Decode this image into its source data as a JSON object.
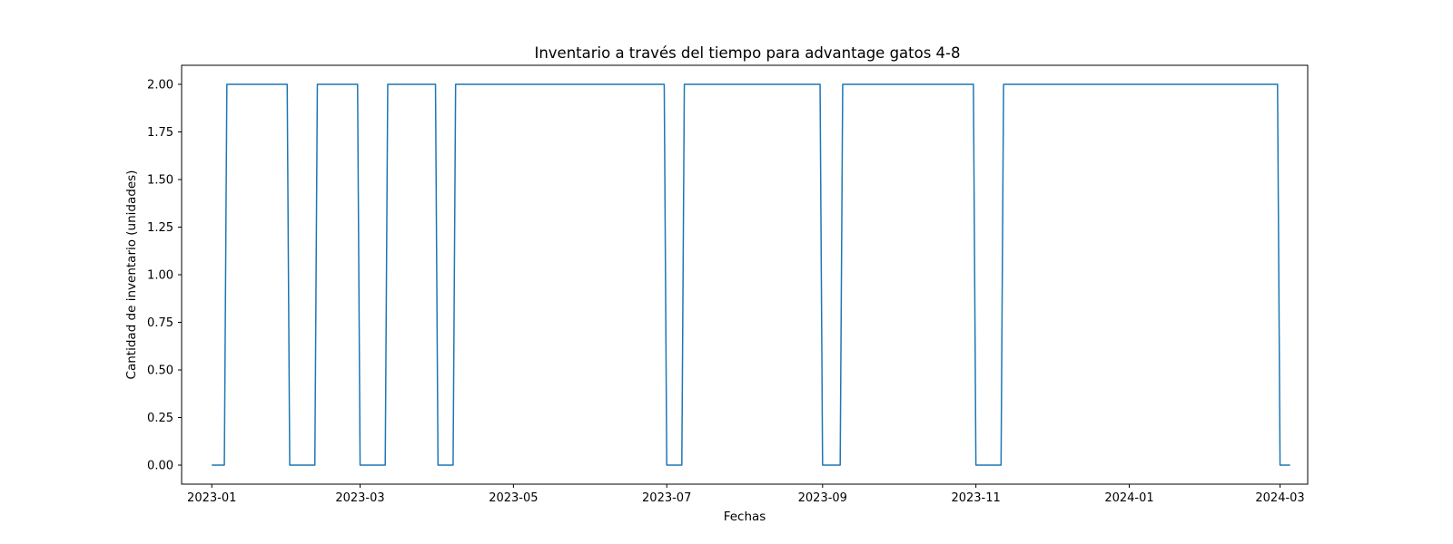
{
  "chart_data": {
    "type": "line",
    "title": "Inventario a través del tiempo para advantage gatos  4-8",
    "xlabel": "Fechas",
    "ylabel": "Cantidad de inventario (unidades)",
    "xlim": [
      "2022-12-20",
      "2024-03-12"
    ],
    "ylim": [
      -0.1,
      2.1
    ],
    "yticks": [
      0.0,
      0.25,
      0.5,
      0.75,
      1.0,
      1.25,
      1.5,
      1.75,
      2.0
    ],
    "ytick_labels": [
      "0.00",
      "0.25",
      "0.50",
      "0.75",
      "1.00",
      "1.25",
      "1.50",
      "1.75",
      "2.00"
    ],
    "xticks": [
      "2023-01-01",
      "2023-03-01",
      "2023-05-01",
      "2023-07-01",
      "2023-09-01",
      "2023-11-01",
      "2024-01-01",
      "2024-03-01"
    ],
    "xtick_labels": [
      "2023-01",
      "2023-03",
      "2023-05",
      "2023-07",
      "2023-09",
      "2023-11",
      "2024-01",
      "2024-03"
    ],
    "grid": false,
    "color": "#1f77b4",
    "series": [
      {
        "x": [
          "2023-01-01",
          "2023-01-06",
          "2023-01-07",
          "2023-01-31",
          "2023-02-01",
          "2023-02-11",
          "2023-02-12",
          "2023-02-28",
          "2023-03-01",
          "2023-03-11",
          "2023-03-12",
          "2023-03-31",
          "2023-04-01",
          "2023-04-07",
          "2023-04-08",
          "2023-06-30",
          "2023-07-01",
          "2023-07-07",
          "2023-07-08",
          "2023-08-31",
          "2023-09-01",
          "2023-09-08",
          "2023-09-09",
          "2023-10-31",
          "2023-11-01",
          "2023-11-11",
          "2023-11-12",
          "2024-02-29",
          "2024-03-01",
          "2024-03-05"
        ],
        "values": [
          0,
          0,
          2,
          2,
          0,
          0,
          2,
          2,
          0,
          0,
          2,
          2,
          0,
          0,
          2,
          2,
          0,
          0,
          2,
          2,
          0,
          0,
          2,
          2,
          0,
          0,
          2,
          2,
          0,
          0
        ]
      }
    ]
  }
}
